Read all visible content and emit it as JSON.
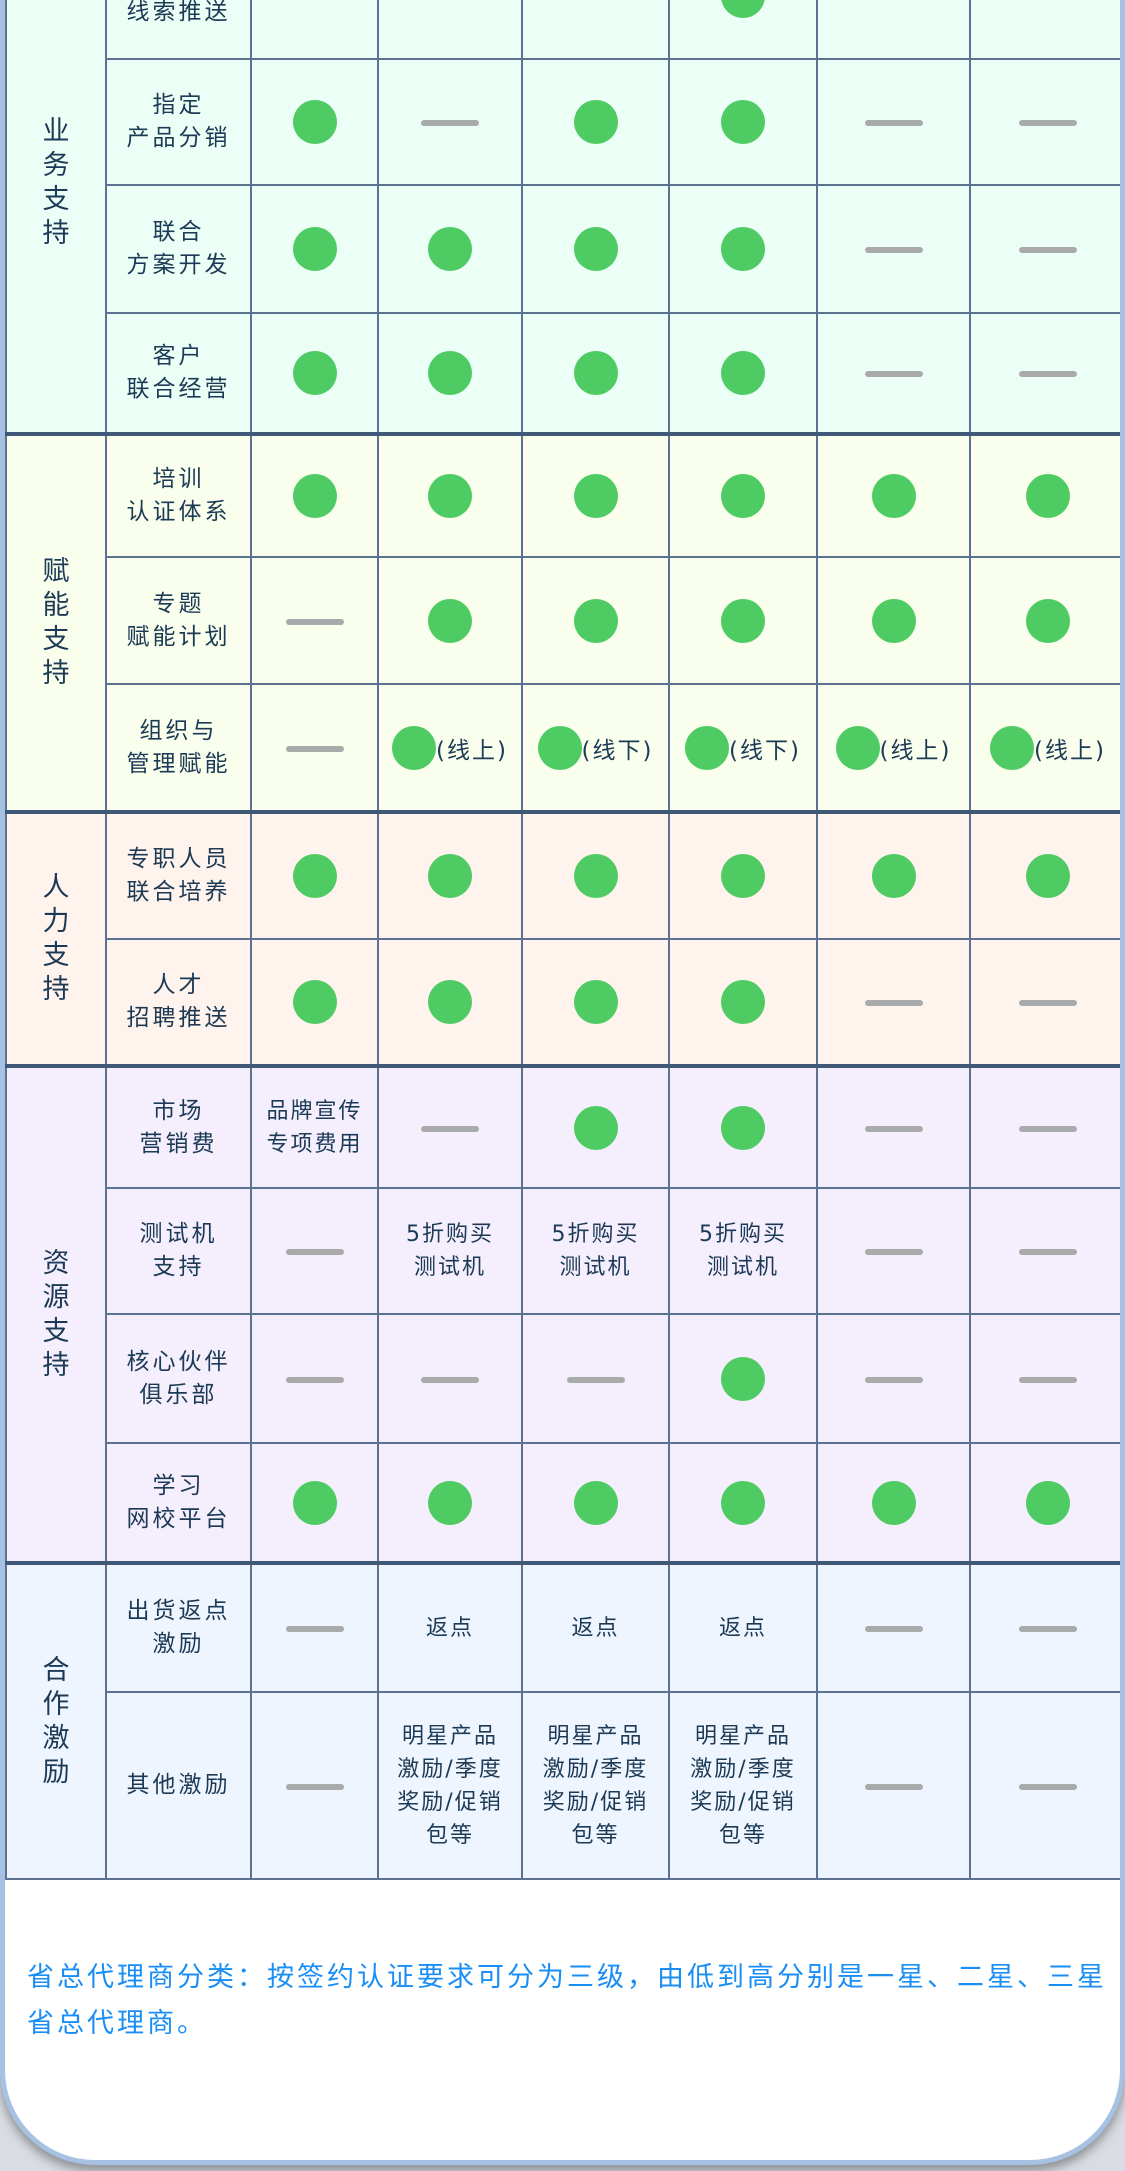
{
  "colors": {
    "dot": "#4ecb63",
    "dash": "#a9aaab",
    "border": "#5d7190",
    "note_text": "#1a8ef5"
  },
  "groups": [
    {
      "label": "业务支持",
      "bg": "#ecfff6",
      "rows": [
        {
          "label": "线索\n线索推送",
          "cells": [
            {
              "type": "dash"
            },
            {
              "type": "dash"
            },
            {
              "type": "dash"
            },
            {
              "type": "dot"
            },
            {
              "type": "dash"
            },
            {
              "type": "dash"
            }
          ]
        },
        {
          "label": "指定\n产品分销",
          "cells": [
            {
              "type": "dot"
            },
            {
              "type": "dash"
            },
            {
              "type": "dot"
            },
            {
              "type": "dot"
            },
            {
              "type": "dash"
            },
            {
              "type": "dash"
            }
          ]
        },
        {
          "label": "联合\n方案开发",
          "cells": [
            {
              "type": "dot"
            },
            {
              "type": "dot"
            },
            {
              "type": "dot"
            },
            {
              "type": "dot"
            },
            {
              "type": "dash"
            },
            {
              "type": "dash"
            }
          ]
        },
        {
          "label": "客户\n联合经营",
          "cells": [
            {
              "type": "dot"
            },
            {
              "type": "dot"
            },
            {
              "type": "dot"
            },
            {
              "type": "dot"
            },
            {
              "type": "dash"
            },
            {
              "type": "dash"
            }
          ]
        }
      ]
    },
    {
      "label": "赋能支持",
      "bg": "#f9ffec",
      "rows": [
        {
          "label": "培训\n认证体系",
          "cells": [
            {
              "type": "dot"
            },
            {
              "type": "dot"
            },
            {
              "type": "dot"
            },
            {
              "type": "dot"
            },
            {
              "type": "dot"
            },
            {
              "type": "dot"
            }
          ]
        },
        {
          "label": "专题\n赋能计划",
          "cells": [
            {
              "type": "dash"
            },
            {
              "type": "dot"
            },
            {
              "type": "dot"
            },
            {
              "type": "dot"
            },
            {
              "type": "dot"
            },
            {
              "type": "dot"
            }
          ]
        },
        {
          "label": "组织与\n管理赋能",
          "cells": [
            {
              "type": "dash"
            },
            {
              "type": "dot",
              "text": "(线上)"
            },
            {
              "type": "dot",
              "text": "(线下)"
            },
            {
              "type": "dot",
              "text": "(线下)"
            },
            {
              "type": "dot",
              "text": "(线上)"
            },
            {
              "type": "dot",
              "text": "(线上)"
            }
          ]
        }
      ]
    },
    {
      "label": "人力支持",
      "bg": "#fff3ed",
      "rows": [
        {
          "label": "专职人员\n联合培养",
          "cells": [
            {
              "type": "dot"
            },
            {
              "type": "dot"
            },
            {
              "type": "dot"
            },
            {
              "type": "dot"
            },
            {
              "type": "dot"
            },
            {
              "type": "dot"
            }
          ]
        },
        {
          "label": "人才\n招聘推送",
          "cells": [
            {
              "type": "dot"
            },
            {
              "type": "dot"
            },
            {
              "type": "dot"
            },
            {
              "type": "dot"
            },
            {
              "type": "dash"
            },
            {
              "type": "dash"
            }
          ]
        }
      ]
    },
    {
      "label": "资源支持",
      "bg": "#f4eefd",
      "rows": [
        {
          "label": "市场\n营销费",
          "cells": [
            {
              "type": "text",
              "text": "品牌宣传\n专项费用"
            },
            {
              "type": "dash"
            },
            {
              "type": "dot"
            },
            {
              "type": "dot"
            },
            {
              "type": "dash"
            },
            {
              "type": "dash"
            }
          ]
        },
        {
          "label": "测试机\n支持",
          "cells": [
            {
              "type": "dash"
            },
            {
              "type": "text",
              "text": "5折购买\n测试机"
            },
            {
              "type": "text",
              "text": "5折购买\n测试机"
            },
            {
              "type": "text",
              "text": "5折购买\n测试机"
            },
            {
              "type": "dash"
            },
            {
              "type": "dash"
            }
          ]
        },
        {
          "label": "核心伙伴\n俱乐部",
          "cells": [
            {
              "type": "dash"
            },
            {
              "type": "dash"
            },
            {
              "type": "dash"
            },
            {
              "type": "dot"
            },
            {
              "type": "dash"
            },
            {
              "type": "dash"
            }
          ]
        },
        {
          "label": "学习\n网校平台",
          "cells": [
            {
              "type": "dot"
            },
            {
              "type": "dot"
            },
            {
              "type": "dot"
            },
            {
              "type": "dot"
            },
            {
              "type": "dot"
            },
            {
              "type": "dot"
            }
          ]
        }
      ]
    },
    {
      "label": "合作激励",
      "bg": "#eef5ff",
      "rows": [
        {
          "label": "出货返点\n激励",
          "cells": [
            {
              "type": "dash"
            },
            {
              "type": "text",
              "text": "返点"
            },
            {
              "type": "text",
              "text": "返点"
            },
            {
              "type": "text",
              "text": "返点"
            },
            {
              "type": "dash"
            },
            {
              "type": "dash"
            }
          ]
        },
        {
          "label": "其他激励",
          "cells": [
            {
              "type": "dash"
            },
            {
              "type": "text",
              "text": "明星产品\n激励/季度\n奖励/促销\n包等"
            },
            {
              "type": "text",
              "text": "明星产品\n激励/季度\n奖励/促销\n包等"
            },
            {
              "type": "text",
              "text": "明星产品\n激励/季度\n奖励/促销\n包等"
            },
            {
              "type": "dash"
            },
            {
              "type": "dash"
            }
          ]
        }
      ]
    }
  ],
  "note": "省总代理商分类：按签约认证要求可分为三级，由低到高分别是一星、二星、三星省总代理商。"
}
